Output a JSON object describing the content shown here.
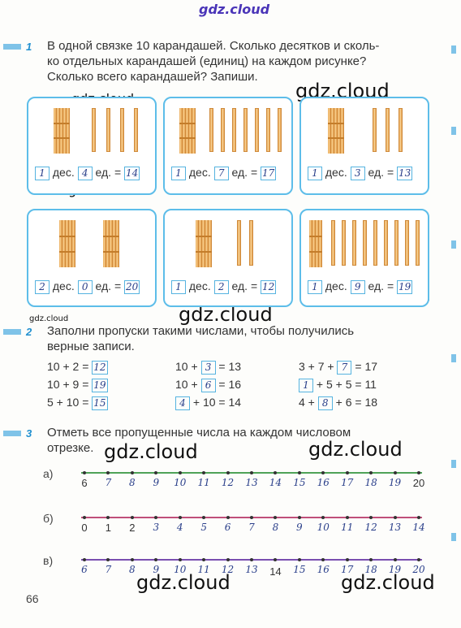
{
  "watermark": "gdz.cloud",
  "page_number": "66",
  "task1": {
    "num": "1",
    "text": [
      "В одной связке 10 карандашей. Сколько десятков и сколь-",
      "ко отдельных карандашей (единиц) на каждом рисунке?",
      "Сколько всего карандашей? Запиши."
    ],
    "dec": "дес.",
    "ed": "ед. =",
    "cards": [
      {
        "d": "1",
        "u": "4",
        "t": "14"
      },
      {
        "d": "1",
        "u": "7",
        "t": "17"
      },
      {
        "d": "1",
        "u": "3",
        "t": "13"
      },
      {
        "d": "2",
        "u": "0",
        "t": "20"
      },
      {
        "d": "1",
        "u": "2",
        "t": "12"
      },
      {
        "d": "1",
        "u": "9",
        "t": "19"
      }
    ]
  },
  "task2": {
    "num": "2",
    "text": [
      "Заполни пропуски такими числами, чтобы получились",
      "верные записи."
    ],
    "col1": [
      {
        "a": "10 + 2 =",
        "b": "12"
      },
      {
        "a": "10 + 9 =",
        "b": "19"
      },
      {
        "a": "5 + 10 =",
        "b": "15"
      }
    ],
    "col2": [
      {
        "a": "10 +",
        "b": "3",
        "c": "= 13"
      },
      {
        "a": "10 +",
        "b": "6",
        "c": "= 16"
      },
      {
        "a": "",
        "b": "4",
        "c": "+ 10 = 14"
      }
    ],
    "col3": [
      {
        "a": "3 + 7 +",
        "b": "7",
        "c": "= 17"
      },
      {
        "a": "",
        "b": "1",
        "c": "+ 5 + 5 = 11"
      },
      {
        "a": "4 +",
        "b": "8",
        "c": "+ 6 = 18"
      }
    ]
  },
  "task3": {
    "num": "3",
    "text": [
      "Отметь все пропущенные числа на каждом числовом",
      "отрезке."
    ],
    "lines": [
      {
        "label": "а)",
        "color": "#4fa357",
        "nums": [
          {
            "v": "6",
            "p": 1
          },
          {
            "v": "7",
            "p": 0
          },
          {
            "v": "8",
            "p": 0
          },
          {
            "v": "9",
            "p": 0
          },
          {
            "v": "10",
            "p": 0
          },
          {
            "v": "11",
            "p": 0
          },
          {
            "v": "12",
            "p": 0
          },
          {
            "v": "13",
            "p": 0
          },
          {
            "v": "14",
            "p": 0
          },
          {
            "v": "15",
            "p": 0
          },
          {
            "v": "16",
            "p": 0
          },
          {
            "v": "17",
            "p": 0
          },
          {
            "v": "18",
            "p": 0
          },
          {
            "v": "19",
            "p": 0
          },
          {
            "v": "20",
            "p": 1
          }
        ]
      },
      {
        "label": "б)",
        "color": "#c0507a",
        "nums": [
          {
            "v": "0",
            "p": 1
          },
          {
            "v": "1",
            "p": 1
          },
          {
            "v": "2",
            "p": 1
          },
          {
            "v": "3",
            "p": 0
          },
          {
            "v": "4",
            "p": 0
          },
          {
            "v": "5",
            "p": 0
          },
          {
            "v": "6",
            "p": 0
          },
          {
            "v": "7",
            "p": 0
          },
          {
            "v": "8",
            "p": 0
          },
          {
            "v": "9",
            "p": 0
          },
          {
            "v": "10",
            "p": 0
          },
          {
            "v": "11",
            "p": 0
          },
          {
            "v": "12",
            "p": 0
          },
          {
            "v": "13",
            "p": 0
          },
          {
            "v": "14",
            "p": 0
          }
        ]
      },
      {
        "label": "в)",
        "color": "#7a4fb0",
        "nums": [
          {
            "v": "6",
            "p": 0
          },
          {
            "v": "7",
            "p": 0
          },
          {
            "v": "8",
            "p": 0
          },
          {
            "v": "9",
            "p": 0
          },
          {
            "v": "10",
            "p": 0
          },
          {
            "v": "11",
            "p": 0
          },
          {
            "v": "12",
            "p": 0
          },
          {
            "v": "13",
            "p": 0
          },
          {
            "v": "14",
            "p": 1
          },
          {
            "v": "15",
            "p": 0
          },
          {
            "v": "16",
            "p": 0
          },
          {
            "v": "17",
            "p": 0
          },
          {
            "v": "18",
            "p": 0
          },
          {
            "v": "19",
            "p": 0
          },
          {
            "v": "20",
            "p": 0
          }
        ]
      }
    ]
  }
}
